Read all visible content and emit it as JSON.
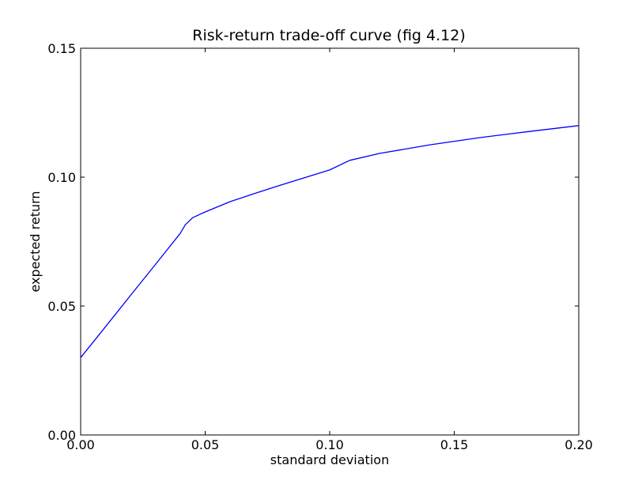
{
  "chart_data": {
    "type": "line",
    "title": "Risk-return trade-off curve (fig 4.12)",
    "xlabel": "standard deviation",
    "ylabel": "expected return",
    "xlim": [
      0.0,
      0.2
    ],
    "ylim": [
      0.0,
      0.15
    ],
    "xticks": [
      "0.00",
      "0.05",
      "0.10",
      "0.15",
      "0.20"
    ],
    "yticks": [
      "0.00",
      "0.05",
      "0.10",
      "0.15"
    ],
    "grid": false,
    "line_color": "#0000ff",
    "series": [
      {
        "x": [
          0.0,
          0.01,
          0.02,
          0.03,
          0.04,
          0.042,
          0.045,
          0.05,
          0.06,
          0.07,
          0.08,
          0.09,
          0.1,
          0.108,
          0.12,
          0.14,
          0.16,
          0.18,
          0.2
        ],
        "y": [
          0.03,
          0.042,
          0.0541,
          0.0661,
          0.0782,
          0.0815,
          0.0843,
          0.0865,
          0.0905,
          0.0937,
          0.0968,
          0.0998,
          0.1028,
          0.1065,
          0.1092,
          0.1125,
          0.1153,
          0.1177,
          0.12
        ]
      }
    ]
  }
}
